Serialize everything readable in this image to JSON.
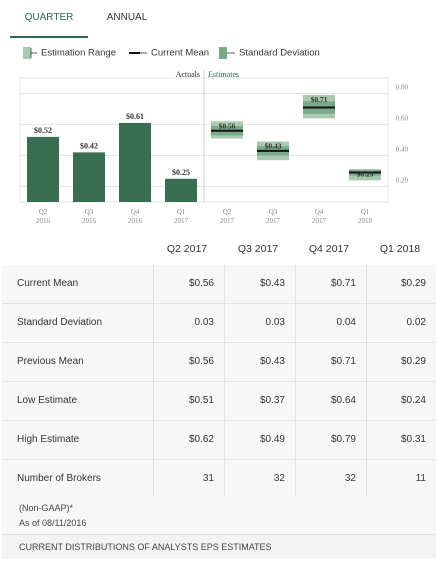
{
  "tabs": {
    "quarter": "QUARTER",
    "annual": "ANNUAL"
  },
  "legend": {
    "range": "Estimation Range",
    "mean": "Current Mean",
    "std": "Standard Deviation"
  },
  "colors": {
    "actual_bar": "#3a6e53",
    "range_light": "#a7c9ad",
    "std_dark": "#7aa888",
    "mean_line": "#111111"
  },
  "chart_data": {
    "type": "bar",
    "sections": [
      "Actuals",
      "Estimates"
    ],
    "categories": [
      {
        "q": "Q2",
        "y": "2016"
      },
      {
        "q": "Q3",
        "y": "2016"
      },
      {
        "q": "Q4",
        "y": "2016"
      },
      {
        "q": "Q1",
        "y": "2017"
      },
      {
        "q": "Q2",
        "y": "2017"
      },
      {
        "q": "Q3",
        "y": "2017"
      },
      {
        "q": "Q4",
        "y": "2017"
      },
      {
        "q": "Q1",
        "y": "2018"
      }
    ],
    "actuals": [
      {
        "value": 0.52,
        "label": "$0.52"
      },
      {
        "value": 0.42,
        "label": "$0.42"
      },
      {
        "value": 0.61,
        "label": "$0.61"
      },
      {
        "value": 0.25,
        "label": "$0.25"
      }
    ],
    "estimates": [
      {
        "mean": 0.56,
        "std": 0.03,
        "low": 0.51,
        "high": 0.62,
        "label": "$0.56"
      },
      {
        "mean": 0.43,
        "std": 0.03,
        "low": 0.37,
        "high": 0.49,
        "label": "$0.43"
      },
      {
        "mean": 0.71,
        "std": 0.04,
        "low": 0.64,
        "high": 0.79,
        "label": "$0.71"
      },
      {
        "mean": 0.29,
        "std": 0.02,
        "low": 0.24,
        "high": 0.31,
        "label": "$0.29"
      }
    ],
    "y_ticks": [
      "0.20",
      "0.40",
      "0.60",
      "0.80"
    ],
    "ylim": [
      0.1,
      0.9
    ]
  },
  "table": {
    "columns": [
      "Q2 2017",
      "Q3 2017",
      "Q4 2017",
      "Q1 2018"
    ],
    "rows": [
      {
        "label": "Current Mean",
        "values": [
          "$0.56",
          "$0.43",
          "$0.71",
          "$0.29"
        ]
      },
      {
        "label": "Standard Deviation",
        "values": [
          "0.03",
          "0.03",
          "0.04",
          "0.02"
        ]
      },
      {
        "label": "Previous Mean",
        "values": [
          "$0.56",
          "$0.43",
          "$0.71",
          "$0.29"
        ]
      },
      {
        "label": "Low Estimate",
        "values": [
          "$0.51",
          "$0.37",
          "$0.64",
          "$0.24"
        ]
      },
      {
        "label": "High Estimate",
        "values": [
          "$0.62",
          "$0.49",
          "$0.79",
          "$0.31"
        ]
      },
      {
        "label": "Number of Brokers",
        "values": [
          "31",
          "32",
          "32",
          "11"
        ]
      }
    ]
  },
  "footer": {
    "note": "(Non-GAAP)*",
    "asof": "As of 08/11/2016",
    "distributions": "CURRENT DISTRIBUTIONS OF ANALYSTS EPS ESTIMATES"
  }
}
